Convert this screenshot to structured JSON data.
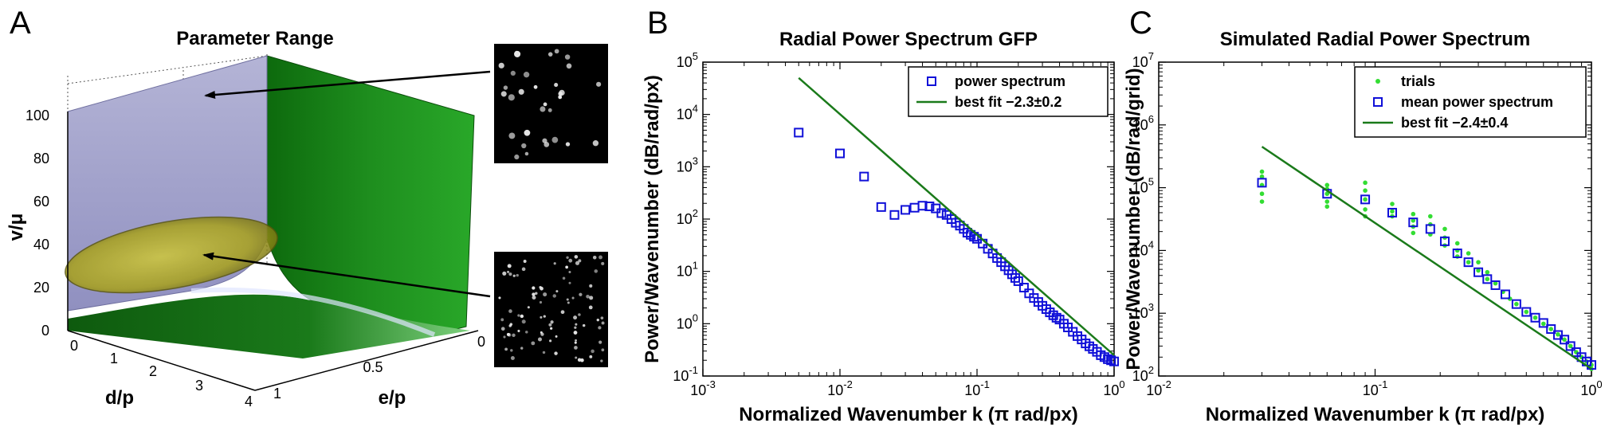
{
  "panels": {
    "a": {
      "letter": "A",
      "title": "Parameter Range",
      "zlabel": "v/μ",
      "xlabel": "d/p",
      "ylabel": "e/p",
      "z_ticks": [
        "0",
        "20",
        "40",
        "60",
        "80",
        "100"
      ],
      "x_ticks": [
        "0",
        "1",
        "2",
        "3",
        "4"
      ],
      "y_ticks": [
        "1",
        "0.5",
        "0"
      ],
      "colors": {
        "surface_lavender": "#9c9cc8",
        "surface_green": "#1f8a1f",
        "ellipse": "#b8b020"
      }
    },
    "b": {
      "letter": "B"
    },
    "c": {
      "letter": "C"
    }
  },
  "chart_data": [
    {
      "type": "scatter",
      "title": "Radial Power Spectrum GFP",
      "xlabel": "Normalized Wavenumber k (π rad/px)",
      "ylabel": "Power/Wavenumber (dB/rad/px)",
      "xscale": "log",
      "yscale": "log",
      "xlim": [
        0.001,
        1
      ],
      "ylim": [
        0.1,
        100000
      ],
      "x_ticks": [
        0.001,
        0.01,
        0.1,
        1
      ],
      "y_ticks": [
        0.1,
        1,
        10,
        100,
        1000,
        10000,
        100000
      ],
      "legend": {
        "position": "top-right"
      },
      "series": [
        {
          "name": "power spectrum",
          "marker": "square",
          "color": "#1010d8",
          "x": [
            0.005,
            0.01,
            0.015,
            0.02,
            0.025,
            0.03,
            0.035,
            0.04,
            0.045,
            0.05,
            0.055,
            0.06,
            0.065,
            0.07,
            0.075,
            0.08,
            0.085,
            0.09,
            0.095,
            0.1,
            0.11,
            0.12,
            0.13,
            0.14,
            0.15,
            0.16,
            0.17,
            0.18,
            0.19,
            0.2,
            0.22,
            0.24,
            0.26,
            0.28,
            0.3,
            0.32,
            0.34,
            0.36,
            0.38,
            0.4,
            0.43,
            0.46,
            0.5,
            0.54,
            0.58,
            0.62,
            0.66,
            0.7,
            0.75,
            0.8,
            0.85,
            0.9,
            0.95,
            1.0
          ],
          "y": [
            4500,
            1800,
            650,
            170,
            120,
            150,
            165,
            180,
            175,
            160,
            130,
            120,
            100,
            85,
            75,
            65,
            55,
            50,
            46,
            42,
            34,
            27,
            22,
            18,
            15,
            12.5,
            10.5,
            8.8,
            7.5,
            6.5,
            4.9,
            3.8,
            3.1,
            2.6,
            2.2,
            1.9,
            1.65,
            1.45,
            1.3,
            1.2,
            1.0,
            0.85,
            0.7,
            0.58,
            0.5,
            0.42,
            0.37,
            0.33,
            0.29,
            0.25,
            0.23,
            0.21,
            0.2,
            0.19
          ]
        },
        {
          "name": "best fit −2.3±0.2",
          "marker": "line",
          "color": "#1a7a1a",
          "x": [
            0.005,
            1.0
          ],
          "y": [
            50000,
            0.25
          ]
        }
      ]
    },
    {
      "type": "scatter",
      "title": "Simulated Radial Power Spectrum",
      "xlabel": "Normalized Wavenumber k (π rad/px)",
      "ylabel": "Power/Wavenumber (dB/rad/grid)",
      "xscale": "log",
      "yscale": "log",
      "xlim": [
        0.01,
        1
      ],
      "ylim": [
        100,
        10000000
      ],
      "x_ticks": [
        0.01,
        0.1,
        1
      ],
      "y_ticks": [
        100,
        1000,
        10000,
        100000,
        1000000,
        10000000
      ],
      "legend": {
        "position": "top-right"
      },
      "series": [
        {
          "name": "trials",
          "marker": "dot",
          "color": "#33dd33",
          "x": [
            0.03,
            0.03,
            0.03,
            0.03,
            0.03,
            0.06,
            0.06,
            0.06,
            0.06,
            0.06,
            0.09,
            0.09,
            0.09,
            0.09,
            0.09,
            0.12,
            0.12,
            0.12,
            0.15,
            0.15,
            0.15,
            0.15,
            0.18,
            0.18,
            0.18,
            0.21,
            0.21,
            0.21,
            0.24,
            0.24,
            0.24,
            0.27,
            0.27,
            0.3,
            0.3,
            0.33,
            0.33,
            0.36,
            0.39,
            0.42,
            0.45,
            0.5,
            0.55,
            0.6,
            0.65,
            0.7,
            0.75,
            0.8,
            0.85,
            0.9,
            0.95,
            1.0,
            1.0
          ],
          "y": [
            180000,
            150000,
            110000,
            80000,
            60000,
            110000,
            95000,
            80000,
            60000,
            50000,
            120000,
            90000,
            65000,
            45000,
            35000,
            55000,
            42000,
            35000,
            38000,
            30000,
            24000,
            19000,
            35000,
            26000,
            18000,
            22000,
            16000,
            12000,
            13000,
            10000,
            8000,
            9000,
            6500,
            6500,
            4800,
            4500,
            3500,
            3000,
            2200,
            1700,
            1400,
            1050,
            850,
            680,
            560,
            460,
            380,
            300,
            240,
            200,
            170,
            150,
            130
          ]
        },
        {
          "name": "mean power spectrum",
          "marker": "square",
          "color": "#1010d8",
          "x": [
            0.03,
            0.06,
            0.09,
            0.12,
            0.15,
            0.18,
            0.21,
            0.24,
            0.27,
            0.3,
            0.33,
            0.36,
            0.4,
            0.45,
            0.5,
            0.55,
            0.6,
            0.65,
            0.7,
            0.75,
            0.8,
            0.85,
            0.9,
            0.95,
            1.0
          ],
          "y": [
            120000,
            80000,
            65000,
            40000,
            28000,
            22000,
            14000,
            9000,
            6500,
            4500,
            3500,
            2800,
            2000,
            1400,
            1050,
            850,
            700,
            560,
            450,
            380,
            300,
            240,
            200,
            170,
            150
          ]
        },
        {
          "name": "best fit −2.4±0.4",
          "marker": "line",
          "color": "#1a7a1a",
          "x": [
            0.03,
            1.0
          ],
          "y": [
            450000,
            130
          ]
        }
      ]
    }
  ]
}
